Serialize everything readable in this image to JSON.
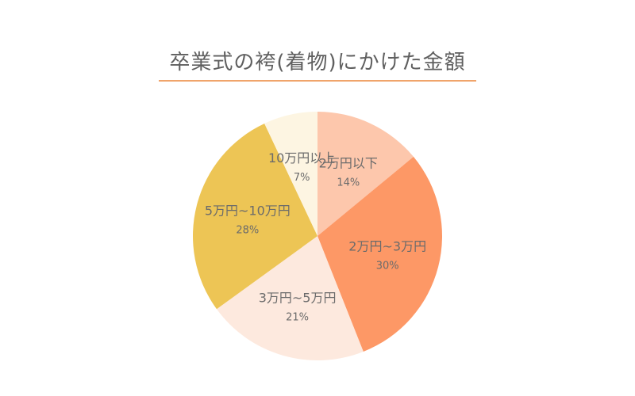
{
  "title": "卒業式の袴(着物)にかけた金額",
  "chart_data": {
    "type": "pie",
    "title": "卒業式の袴(着物)にかけた金額",
    "start_angle_deg": 0,
    "direction": "clockwise",
    "slices": [
      {
        "label": "2万円以下",
        "value": 14,
        "display": "14%",
        "color": "#fdc7ac"
      },
      {
        "label": "2万円~3万円",
        "value": 30,
        "display": "30%",
        "color": "#fd9866"
      },
      {
        "label": "3万円~5万円",
        "value": 21,
        "display": "21%",
        "color": "#fde9de"
      },
      {
        "label": "5万円~10万円",
        "value": 28,
        "display": "28%",
        "color": "#edc555"
      },
      {
        "label": "10万円以上",
        "value": 7,
        "display": "7%",
        "color": "#fdf5e2"
      }
    ]
  }
}
